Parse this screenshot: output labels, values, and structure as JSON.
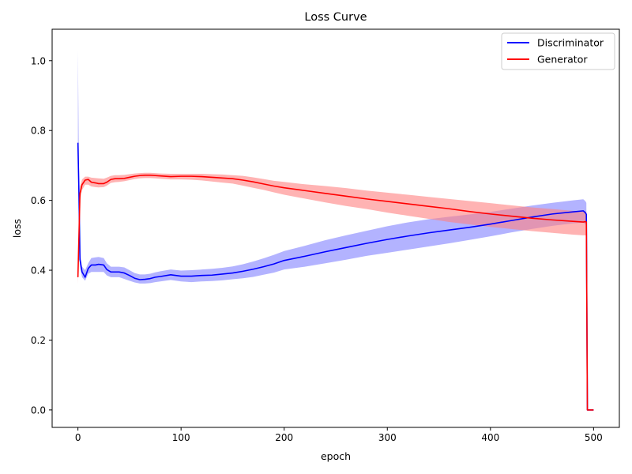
{
  "chart_data": {
    "type": "line",
    "title": "Loss Curve",
    "xlabel": "epoch",
    "ylabel": "loss",
    "xlim": [
      -25,
      525
    ],
    "ylim": [
      -0.05,
      1.09
    ],
    "xticks": [
      0,
      100,
      200,
      300,
      400,
      500
    ],
    "yticks": [
      0.0,
      0.2,
      0.4,
      0.6,
      0.8,
      1.0
    ],
    "xtick_labels": [
      "0",
      "100",
      "200",
      "300",
      "400",
      "500"
    ],
    "ytick_labels": [
      "0.0",
      "0.2",
      "0.4",
      "0.6",
      "0.8",
      "1.0"
    ],
    "grid": false,
    "legend_position": "top-right",
    "series": [
      {
        "name": "Discriminator",
        "color": "#0000ff",
        "band_color": "#8080ff",
        "x": [
          0,
          1,
          2,
          4,
          7,
          10,
          13,
          17,
          20,
          25,
          28,
          32,
          36,
          40,
          45,
          50,
          55,
          60,
          65,
          70,
          75,
          80,
          90,
          100,
          110,
          120,
          130,
          140,
          150,
          160,
          170,
          180,
          190,
          200,
          220,
          240,
          260,
          280,
          300,
          320,
          340,
          360,
          380,
          400,
          420,
          440,
          460,
          480,
          490,
          492,
          493,
          494,
          500
        ],
        "y": [
          0.765,
          0.62,
          0.43,
          0.395,
          0.38,
          0.405,
          0.415,
          0.415,
          0.417,
          0.415,
          0.402,
          0.395,
          0.395,
          0.395,
          0.392,
          0.385,
          0.377,
          0.373,
          0.374,
          0.376,
          0.38,
          0.382,
          0.387,
          0.383,
          0.383,
          0.385,
          0.386,
          0.389,
          0.392,
          0.397,
          0.403,
          0.41,
          0.418,
          0.428,
          0.44,
          0.453,
          0.465,
          0.477,
          0.488,
          0.498,
          0.507,
          0.515,
          0.523,
          0.532,
          0.542,
          0.552,
          0.561,
          0.567,
          0.57,
          0.565,
          0.56,
          0.0,
          0.0
        ],
        "lower": [
          0.72,
          0.55,
          0.41,
          0.38,
          0.37,
          0.39,
          0.395,
          0.395,
          0.395,
          0.395,
          0.385,
          0.38,
          0.38,
          0.38,
          0.375,
          0.37,
          0.365,
          0.362,
          0.362,
          0.363,
          0.366,
          0.368,
          0.372,
          0.368,
          0.366,
          0.368,
          0.369,
          0.371,
          0.374,
          0.377,
          0.381,
          0.387,
          0.393,
          0.402,
          0.41,
          0.42,
          0.43,
          0.441,
          0.45,
          0.459,
          0.468,
          0.477,
          0.487,
          0.497,
          0.508,
          0.518,
          0.527,
          0.534,
          0.536,
          0.532,
          0.527,
          0.0,
          0.0
        ],
        "upper": [
          1.03,
          0.7,
          0.45,
          0.41,
          0.4,
          0.42,
          0.435,
          0.437,
          0.438,
          0.435,
          0.42,
          0.41,
          0.41,
          0.41,
          0.408,
          0.4,
          0.392,
          0.388,
          0.388,
          0.39,
          0.394,
          0.397,
          0.402,
          0.399,
          0.4,
          0.402,
          0.404,
          0.407,
          0.411,
          0.417,
          0.425,
          0.434,
          0.444,
          0.455,
          0.47,
          0.486,
          0.5,
          0.513,
          0.526,
          0.537,
          0.546,
          0.553,
          0.56,
          0.567,
          0.576,
          0.585,
          0.593,
          0.6,
          0.603,
          0.598,
          0.593,
          0.0,
          0.0
        ]
      },
      {
        "name": "Generator",
        "color": "#ff0000",
        "band_color": "#ff8080",
        "x": [
          0,
          1,
          2,
          4,
          7,
          10,
          13,
          17,
          20,
          25,
          28,
          32,
          36,
          40,
          45,
          50,
          55,
          60,
          65,
          70,
          75,
          80,
          90,
          100,
          110,
          120,
          130,
          140,
          150,
          160,
          170,
          180,
          190,
          200,
          220,
          240,
          260,
          280,
          300,
          320,
          340,
          360,
          380,
          400,
          420,
          440,
          460,
          480,
          490,
          492,
          493,
          494,
          500
        ],
        "y": [
          0.38,
          0.5,
          0.62,
          0.645,
          0.658,
          0.66,
          0.652,
          0.65,
          0.648,
          0.648,
          0.652,
          0.66,
          0.662,
          0.662,
          0.663,
          0.666,
          0.669,
          0.671,
          0.672,
          0.672,
          0.671,
          0.67,
          0.668,
          0.669,
          0.669,
          0.668,
          0.666,
          0.664,
          0.662,
          0.658,
          0.653,
          0.647,
          0.641,
          0.636,
          0.628,
          0.62,
          0.612,
          0.604,
          0.597,
          0.59,
          0.583,
          0.576,
          0.568,
          0.561,
          0.555,
          0.549,
          0.544,
          0.54,
          0.538,
          0.539,
          0.538,
          0.0,
          0.0
        ],
        "lower": [
          0.36,
          0.47,
          0.6,
          0.63,
          0.645,
          0.645,
          0.64,
          0.638,
          0.637,
          0.638,
          0.642,
          0.65,
          0.652,
          0.653,
          0.655,
          0.658,
          0.661,
          0.663,
          0.664,
          0.664,
          0.663,
          0.662,
          0.66,
          0.66,
          0.659,
          0.657,
          0.654,
          0.651,
          0.648,
          0.642,
          0.636,
          0.63,
          0.623,
          0.616,
          0.605,
          0.594,
          0.584,
          0.575,
          0.565,
          0.556,
          0.547,
          0.538,
          0.531,
          0.524,
          0.518,
          0.512,
          0.507,
          0.502,
          0.5,
          0.5,
          0.5,
          0.0,
          0.0
        ],
        "upper": [
          0.4,
          0.52,
          0.64,
          0.66,
          0.668,
          0.668,
          0.665,
          0.664,
          0.663,
          0.662,
          0.665,
          0.67,
          0.672,
          0.672,
          0.673,
          0.675,
          0.677,
          0.678,
          0.679,
          0.679,
          0.678,
          0.677,
          0.676,
          0.676,
          0.676,
          0.676,
          0.675,
          0.674,
          0.672,
          0.67,
          0.666,
          0.661,
          0.656,
          0.653,
          0.646,
          0.641,
          0.635,
          0.628,
          0.622,
          0.616,
          0.61,
          0.604,
          0.598,
          0.592,
          0.586,
          0.58,
          0.575,
          0.57,
          0.568,
          0.568,
          0.567,
          0.0,
          0.0
        ]
      }
    ]
  }
}
